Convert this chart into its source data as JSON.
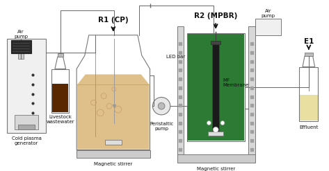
{
  "bg_color": "#ffffff",
  "labels": {
    "cold_plasma": "Cold plasma\ngenerator",
    "livestock": "Livestock\nwastewater",
    "r1": "R1 (CP)",
    "magnetic_stirrer1": "Magnetic stirrer",
    "peristaltic_pump": "Peristaltic\npump",
    "r2": "R2 (MPBR)",
    "led_bar": "LED bar",
    "mf_membrane": "MF\nMembrane",
    "magnetic_stirrer2": "Magnetic stirrer",
    "air_pump1": "Air\npump",
    "air_pump2": "Air\npump",
    "effluent": "Effluent",
    "e1": "E1"
  },
  "colors": {
    "liquid_tan": "#dfc08a",
    "liquid_green": "#2d7a35",
    "liquid_brown": "#5a2800",
    "liquid_yellow_light": "#e8dfa0",
    "border": "#777777",
    "line": "#666666",
    "arrow": "#111111",
    "led_bar_fill": "#d8d8d8",
    "stirrer_base": "#cccccc",
    "bubble": "#ffffff",
    "cpg_fill": "#f0f0f0",
    "ap_fill": "#2a2a2a",
    "pp_fill": "#e8e8e8"
  }
}
